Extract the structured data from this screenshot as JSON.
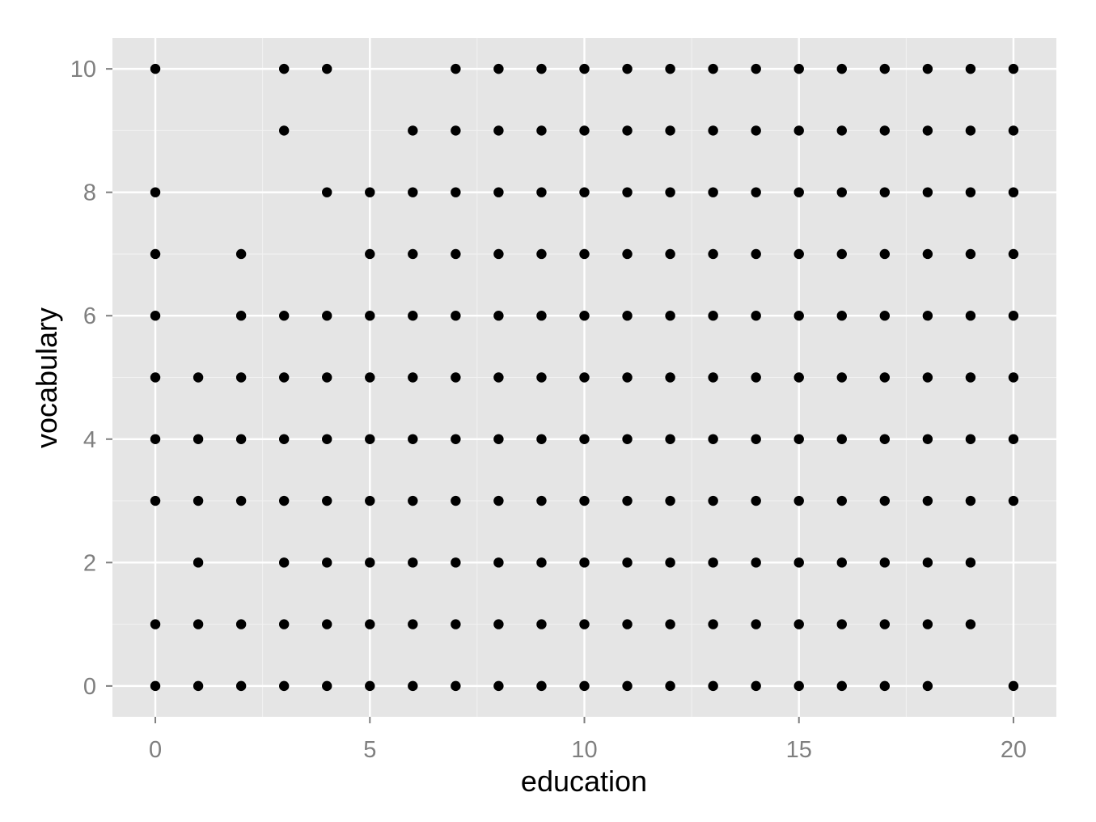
{
  "chart_data": {
    "type": "scatter",
    "title": "",
    "xlabel": "education",
    "ylabel": "vocabulary",
    "xlim": [
      -1,
      21
    ],
    "ylim": [
      -0.5,
      10.5
    ],
    "x_ticks": [
      0,
      5,
      10,
      15,
      20
    ],
    "x_tick_labels": [
      "0",
      "5",
      "10",
      "15",
      "20"
    ],
    "y_ticks": [
      0,
      2,
      4,
      6,
      8,
      10
    ],
    "y_tick_labels": [
      "0",
      "2",
      "4",
      "6",
      "8",
      "10"
    ],
    "grid": true,
    "panel_background": "#e5e5e5",
    "grid_color": "#ffffff",
    "point_color": "#000000",
    "series": [
      {
        "points": [
          [
            0,
            0
          ],
          [
            0,
            1
          ],
          [
            0,
            3
          ],
          [
            0,
            4
          ],
          [
            0,
            5
          ],
          [
            0,
            6
          ],
          [
            0,
            7
          ],
          [
            0,
            8
          ],
          [
            0,
            10
          ],
          [
            1,
            0
          ],
          [
            1,
            1
          ],
          [
            1,
            2
          ],
          [
            1,
            3
          ],
          [
            1,
            4
          ],
          [
            1,
            5
          ],
          [
            2,
            0
          ],
          [
            2,
            1
          ],
          [
            2,
            3
          ],
          [
            2,
            4
          ],
          [
            2,
            5
          ],
          [
            2,
            6
          ],
          [
            2,
            7
          ],
          [
            3,
            0
          ],
          [
            3,
            1
          ],
          [
            3,
            2
          ],
          [
            3,
            3
          ],
          [
            3,
            4
          ],
          [
            3,
            5
          ],
          [
            3,
            6
          ],
          [
            3,
            9
          ],
          [
            3,
            10
          ],
          [
            4,
            0
          ],
          [
            4,
            1
          ],
          [
            4,
            2
          ],
          [
            4,
            3
          ],
          [
            4,
            4
          ],
          [
            4,
            5
          ],
          [
            4,
            6
          ],
          [
            4,
            8
          ],
          [
            4,
            10
          ],
          [
            5,
            0
          ],
          [
            5,
            1
          ],
          [
            5,
            2
          ],
          [
            5,
            3
          ],
          [
            5,
            4
          ],
          [
            5,
            5
          ],
          [
            5,
            6
          ],
          [
            5,
            7
          ],
          [
            5,
            8
          ],
          [
            6,
            0
          ],
          [
            6,
            1
          ],
          [
            6,
            2
          ],
          [
            6,
            3
          ],
          [
            6,
            4
          ],
          [
            6,
            5
          ],
          [
            6,
            6
          ],
          [
            6,
            7
          ],
          [
            6,
            8
          ],
          [
            6,
            9
          ],
          [
            7,
            0
          ],
          [
            7,
            1
          ],
          [
            7,
            2
          ],
          [
            7,
            3
          ],
          [
            7,
            4
          ],
          [
            7,
            5
          ],
          [
            7,
            6
          ],
          [
            7,
            7
          ],
          [
            7,
            8
          ],
          [
            7,
            9
          ],
          [
            7,
            10
          ],
          [
            8,
            0
          ],
          [
            8,
            1
          ],
          [
            8,
            2
          ],
          [
            8,
            3
          ],
          [
            8,
            4
          ],
          [
            8,
            5
          ],
          [
            8,
            6
          ],
          [
            8,
            7
          ],
          [
            8,
            8
          ],
          [
            8,
            9
          ],
          [
            8,
            10
          ],
          [
            9,
            0
          ],
          [
            9,
            1
          ],
          [
            9,
            2
          ],
          [
            9,
            3
          ],
          [
            9,
            4
          ],
          [
            9,
            5
          ],
          [
            9,
            6
          ],
          [
            9,
            7
          ],
          [
            9,
            8
          ],
          [
            9,
            9
          ],
          [
            9,
            10
          ],
          [
            10,
            0
          ],
          [
            10,
            1
          ],
          [
            10,
            2
          ],
          [
            10,
            3
          ],
          [
            10,
            4
          ],
          [
            10,
            5
          ],
          [
            10,
            6
          ],
          [
            10,
            7
          ],
          [
            10,
            8
          ],
          [
            10,
            9
          ],
          [
            10,
            10
          ],
          [
            11,
            0
          ],
          [
            11,
            1
          ],
          [
            11,
            2
          ],
          [
            11,
            3
          ],
          [
            11,
            4
          ],
          [
            11,
            5
          ],
          [
            11,
            6
          ],
          [
            11,
            7
          ],
          [
            11,
            8
          ],
          [
            11,
            9
          ],
          [
            11,
            10
          ],
          [
            12,
            0
          ],
          [
            12,
            1
          ],
          [
            12,
            2
          ],
          [
            12,
            3
          ],
          [
            12,
            4
          ],
          [
            12,
            5
          ],
          [
            12,
            6
          ],
          [
            12,
            7
          ],
          [
            12,
            8
          ],
          [
            12,
            9
          ],
          [
            12,
            10
          ],
          [
            13,
            0
          ],
          [
            13,
            1
          ],
          [
            13,
            2
          ],
          [
            13,
            3
          ],
          [
            13,
            4
          ],
          [
            13,
            5
          ],
          [
            13,
            6
          ],
          [
            13,
            7
          ],
          [
            13,
            8
          ],
          [
            13,
            9
          ],
          [
            13,
            10
          ],
          [
            14,
            0
          ],
          [
            14,
            1
          ],
          [
            14,
            2
          ],
          [
            14,
            3
          ],
          [
            14,
            4
          ],
          [
            14,
            5
          ],
          [
            14,
            6
          ],
          [
            14,
            7
          ],
          [
            14,
            8
          ],
          [
            14,
            9
          ],
          [
            14,
            10
          ],
          [
            15,
            0
          ],
          [
            15,
            1
          ],
          [
            15,
            2
          ],
          [
            15,
            3
          ],
          [
            15,
            4
          ],
          [
            15,
            5
          ],
          [
            15,
            6
          ],
          [
            15,
            7
          ],
          [
            15,
            8
          ],
          [
            15,
            9
          ],
          [
            15,
            10
          ],
          [
            16,
            0
          ],
          [
            16,
            1
          ],
          [
            16,
            2
          ],
          [
            16,
            3
          ],
          [
            16,
            4
          ],
          [
            16,
            5
          ],
          [
            16,
            6
          ],
          [
            16,
            7
          ],
          [
            16,
            8
          ],
          [
            16,
            9
          ],
          [
            16,
            10
          ],
          [
            17,
            0
          ],
          [
            17,
            1
          ],
          [
            17,
            2
          ],
          [
            17,
            3
          ],
          [
            17,
            4
          ],
          [
            17,
            5
          ],
          [
            17,
            6
          ],
          [
            17,
            7
          ],
          [
            17,
            8
          ],
          [
            17,
            9
          ],
          [
            17,
            10
          ],
          [
            18,
            0
          ],
          [
            18,
            1
          ],
          [
            18,
            2
          ],
          [
            18,
            3
          ],
          [
            18,
            4
          ],
          [
            18,
            5
          ],
          [
            18,
            6
          ],
          [
            18,
            7
          ],
          [
            18,
            8
          ],
          [
            18,
            9
          ],
          [
            18,
            10
          ],
          [
            19,
            1
          ],
          [
            19,
            2
          ],
          [
            19,
            3
          ],
          [
            19,
            4
          ],
          [
            19,
            5
          ],
          [
            19,
            6
          ],
          [
            19,
            7
          ],
          [
            19,
            8
          ],
          [
            19,
            9
          ],
          [
            19,
            10
          ],
          [
            20,
            0
          ],
          [
            20,
            3
          ],
          [
            20,
            4
          ],
          [
            20,
            5
          ],
          [
            20,
            6
          ],
          [
            20,
            7
          ],
          [
            20,
            8
          ],
          [
            20,
            9
          ],
          [
            20,
            10
          ]
        ]
      }
    ]
  }
}
